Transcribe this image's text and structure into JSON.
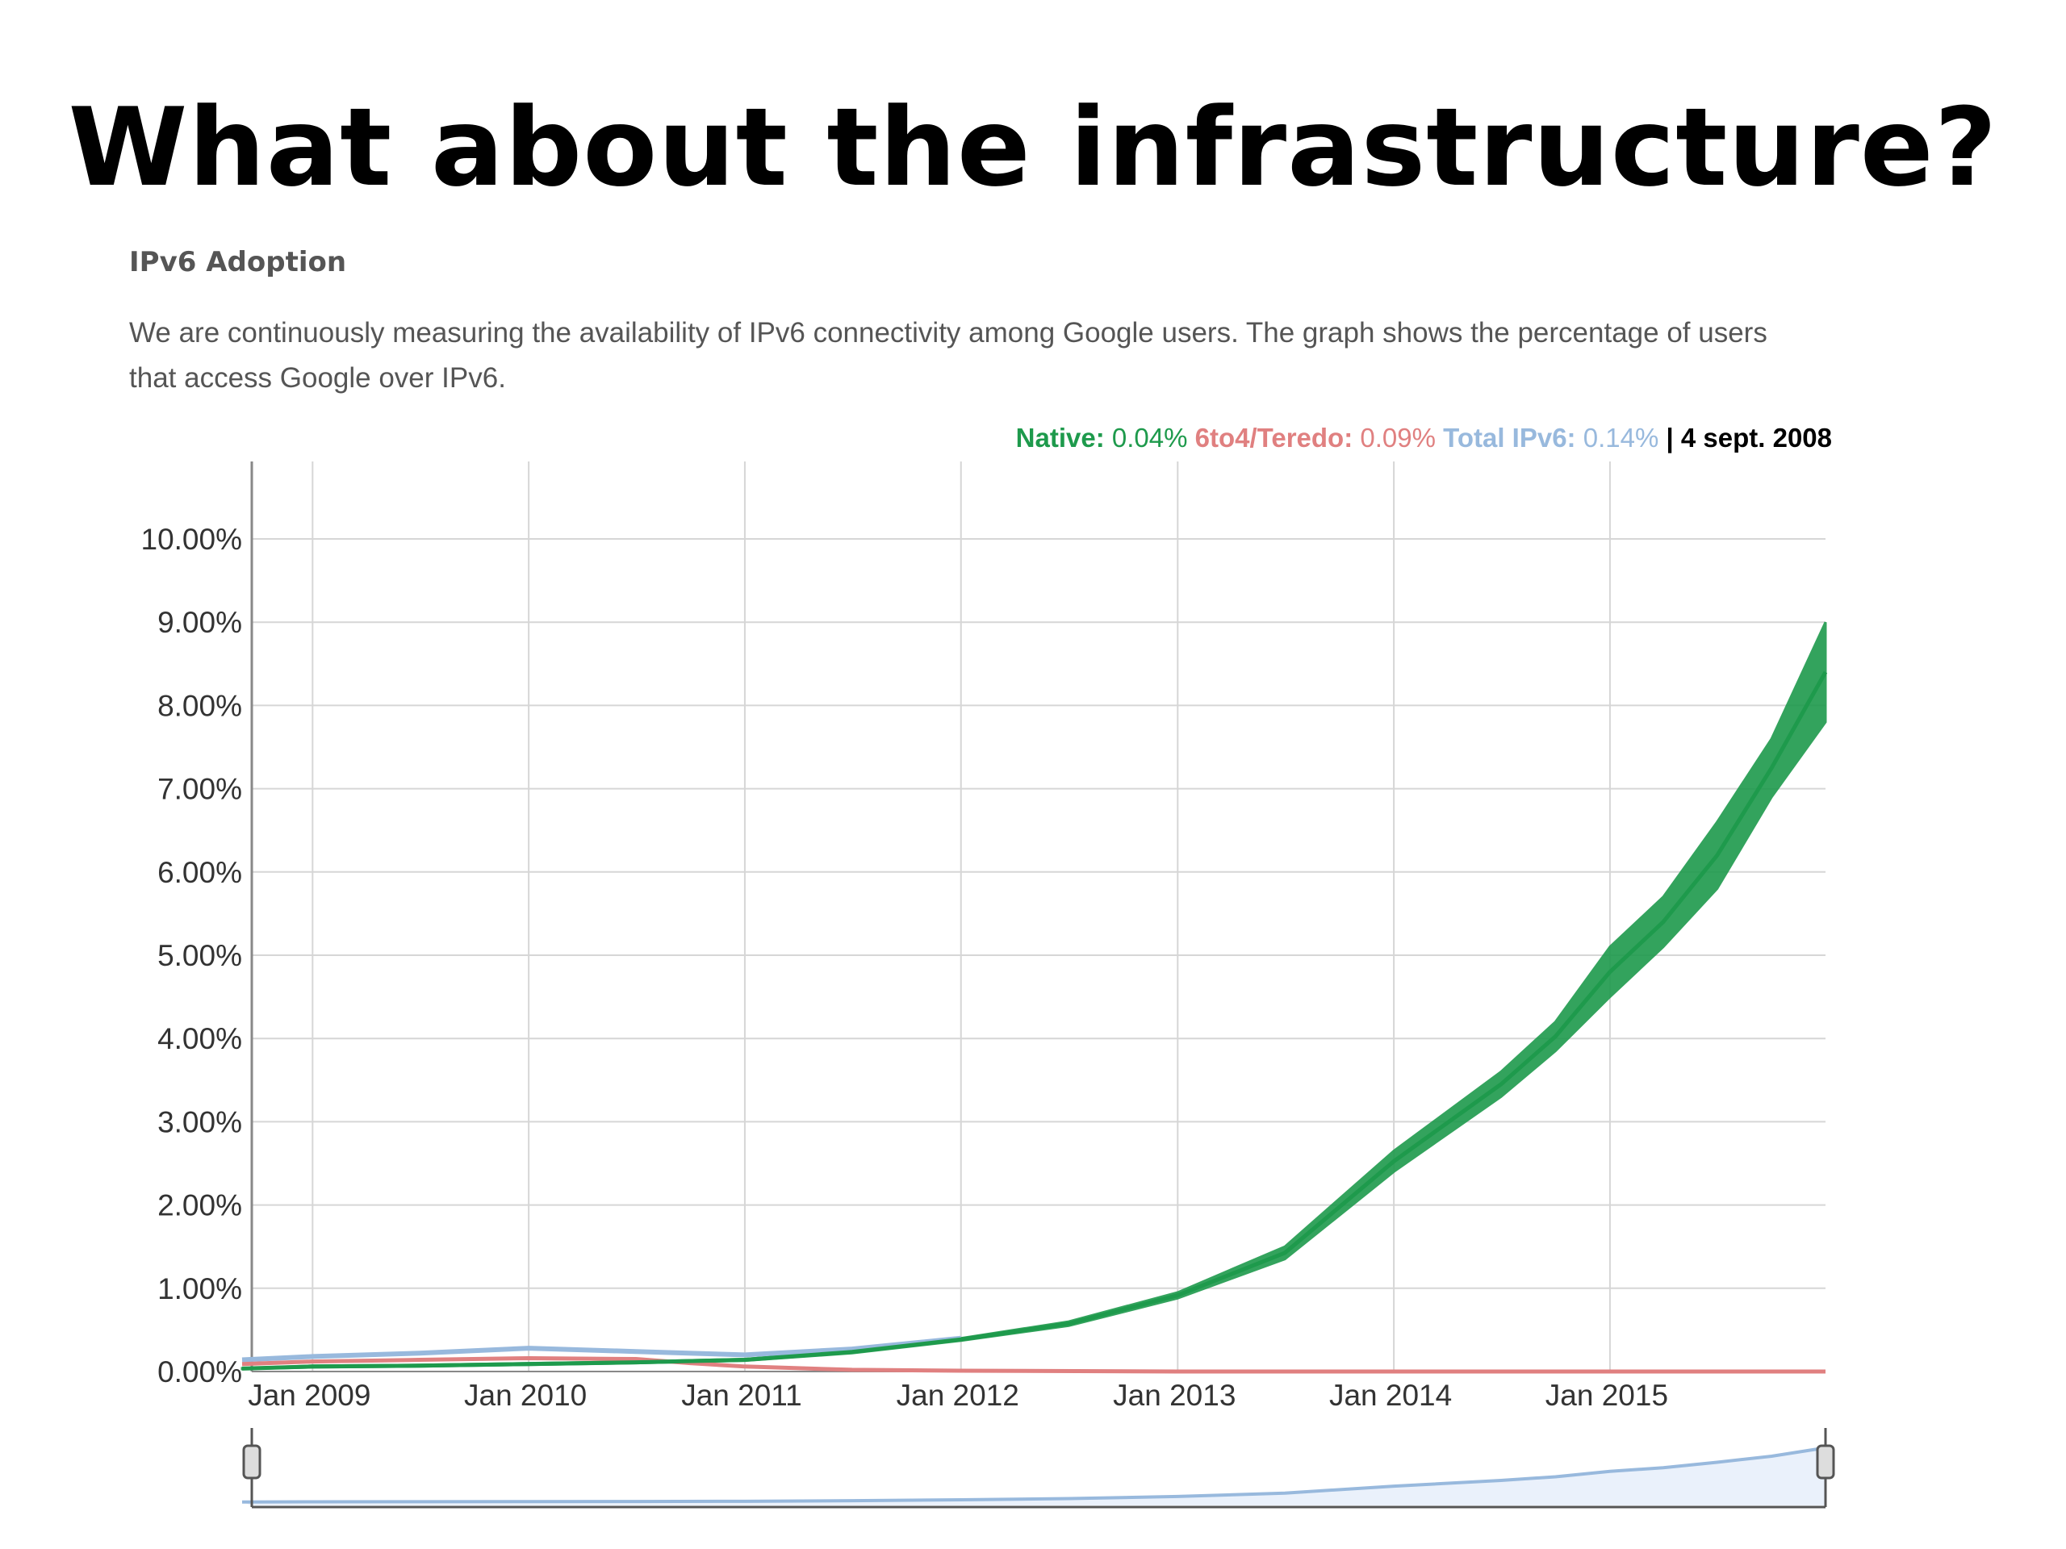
{
  "slide": {
    "title": "What about the infrastructure?"
  },
  "section": {
    "heading": "IPv6 Adoption",
    "description": "We are continuously measuring the availability of IPv6 connectivity among Google users. The graph shows the percentage of users that access Google over IPv6."
  },
  "legend": {
    "native_label": "Native:",
    "native_value": "0.04%",
    "teredo_label": "6to4/Teredo:",
    "teredo_value": "0.09%",
    "total_label": "Total IPv6:",
    "total_value": "0.14%",
    "separator": "|",
    "date": "4 sept. 2008"
  },
  "colors": {
    "native": "#1e9a4c",
    "teredo": "#e08080",
    "total": "#98b9dd",
    "grid": "#d6d6d6",
    "axis": "#888888"
  },
  "chart_data": {
    "type": "line",
    "title": "",
    "xlabel": "",
    "ylabel": "",
    "x_ticks": [
      "Jan 2009",
      "Jan 2010",
      "Jan 2011",
      "Jan 2012",
      "Jan 2013",
      "Jan 2014",
      "Jan 2015"
    ],
    "y_ticks": [
      "0.00%",
      "1.00%",
      "2.00%",
      "3.00%",
      "4.00%",
      "5.00%",
      "6.00%",
      "7.00%",
      "8.00%",
      "9.00%",
      "10.00%"
    ],
    "xlim": [
      "2008-09-04",
      "2015-12-31"
    ],
    "ylim": [
      0,
      11
    ],
    "grid": true,
    "range_selector": true,
    "series": [
      {
        "name": "Native",
        "x": [
          "2008-09-04",
          "2009-01-01",
          "2009-07-01",
          "2010-01-01",
          "2010-07-01",
          "2011-01-01",
          "2011-07-01",
          "2012-01-01",
          "2012-07-01",
          "2013-01-01",
          "2013-07-01",
          "2014-01-01",
          "2014-07-01",
          "2014-10-01",
          "2015-01-01",
          "2015-04-01",
          "2015-07-01",
          "2015-10-01",
          "2015-12-31"
        ],
        "y": [
          0.04,
          0.07,
          0.08,
          0.1,
          0.12,
          0.15,
          0.25,
          0.4,
          0.6,
          0.95,
          1.5,
          2.65,
          3.6,
          4.2,
          5.1,
          5.7,
          6.6,
          7.6,
          9.0
        ],
        "y_low": [
          0.03,
          0.05,
          0.06,
          0.08,
          0.1,
          0.13,
          0.22,
          0.37,
          0.55,
          0.88,
          1.35,
          2.4,
          3.3,
          3.85,
          4.5,
          5.1,
          5.8,
          6.9,
          7.8
        ]
      },
      {
        "name": "6to4/Teredo",
        "x": [
          "2008-09-04",
          "2009-01-01",
          "2009-07-01",
          "2010-01-01",
          "2010-07-01",
          "2010-10-01",
          "2011-01-01",
          "2011-07-01",
          "2012-01-01",
          "2013-01-01",
          "2014-01-01",
          "2015-01-01",
          "2015-12-31"
        ],
        "y": [
          0.09,
          0.12,
          0.14,
          0.16,
          0.15,
          0.1,
          0.06,
          0.02,
          0.01,
          0.0,
          0.0,
          0.0,
          0.0
        ]
      },
      {
        "name": "Total IPv6",
        "x": [
          "2008-09-04",
          "2009-01-01",
          "2009-07-01",
          "2010-01-01",
          "2010-07-01",
          "2011-01-01",
          "2011-07-01",
          "2012-01-01"
        ],
        "y": [
          0.14,
          0.18,
          0.22,
          0.28,
          0.24,
          0.2,
          0.27,
          0.4
        ]
      }
    ]
  }
}
